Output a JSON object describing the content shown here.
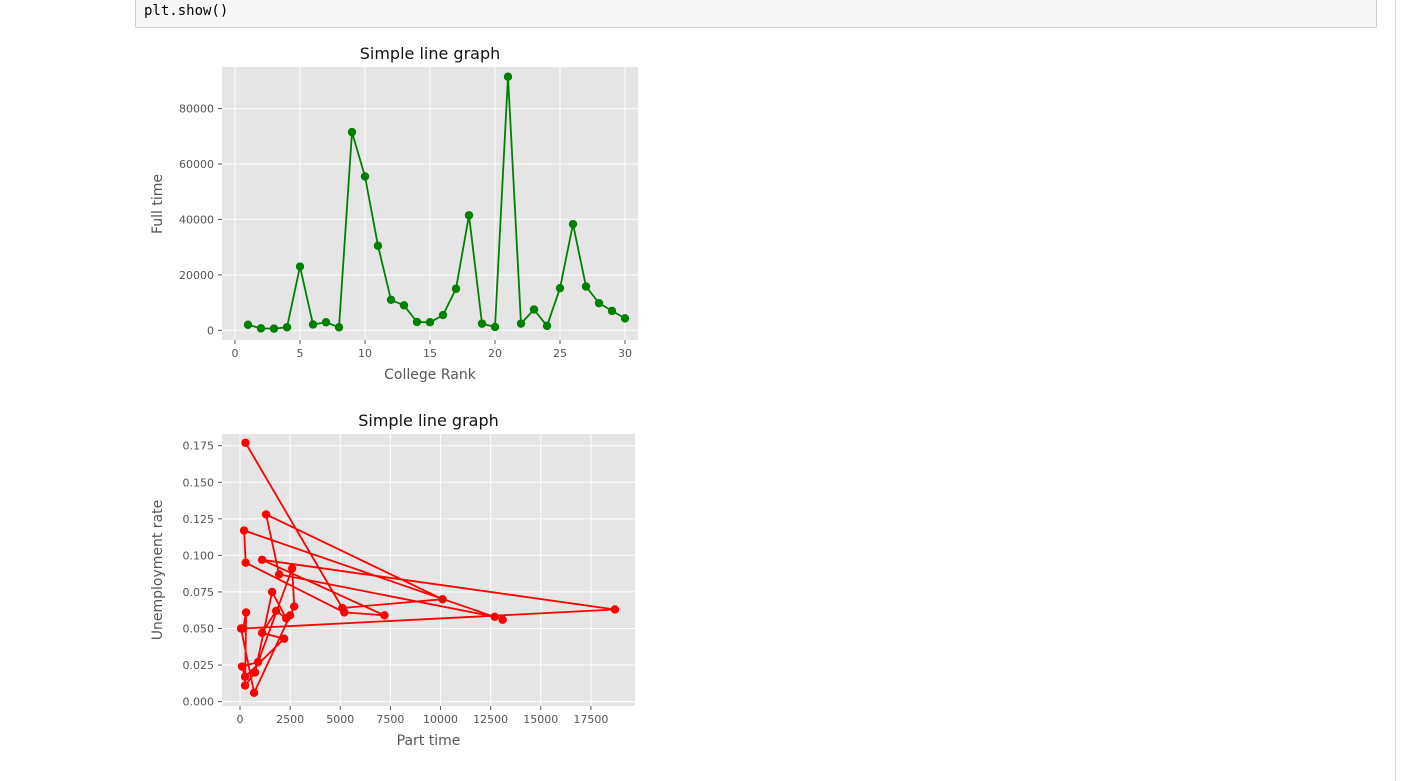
{
  "code": {
    "last_line": "plt.show()"
  },
  "chart_data": [
    {
      "type": "line",
      "title": "Simple line graph",
      "xlabel": "College Rank",
      "ylabel": "Full time",
      "marker": "circle",
      "color": "#008000",
      "background": "#e5e5e5",
      "grid": true,
      "xlim": [
        -1,
        31
      ],
      "ylim": [
        -3500,
        95000
      ],
      "xticks": [
        0,
        5,
        10,
        15,
        20,
        25,
        30
      ],
      "yticks": [
        0,
        20000,
        40000,
        60000,
        80000
      ],
      "xtick_labels": [
        "0",
        "5",
        "10",
        "15",
        "20",
        "25",
        "30"
      ],
      "ytick_labels": [
        "0",
        "20000",
        "40000",
        "60000",
        "80000"
      ],
      "x": [
        1,
        2,
        3,
        4,
        5,
        6,
        7,
        8,
        9,
        10,
        11,
        12,
        13,
        14,
        15,
        16,
        17,
        18,
        19,
        20,
        21,
        22,
        23,
        24,
        25,
        26,
        27,
        28,
        29,
        30
      ],
      "y": [
        2000,
        700,
        600,
        1100,
        23000,
        2100,
        2900,
        1100,
        71500,
        55500,
        30500,
        11000,
        9000,
        3000,
        2900,
        5500,
        15000,
        41500,
        2400,
        1200,
        91500,
        2400,
        7500,
        1600,
        15200,
        38300,
        15800,
        9800,
        7000,
        4300
      ]
    },
    {
      "type": "line",
      "title": "Simple line graph",
      "xlabel": "Part time",
      "ylabel": "Unemployment rate",
      "marker": "circle",
      "color": "#ff0000",
      "background": "#e5e5e5",
      "grid": true,
      "xlim": [
        -900,
        19700
      ],
      "ylim": [
        -0.003,
        0.183
      ],
      "xticks": [
        0,
        2500,
        5000,
        7500,
        10000,
        12500,
        15000,
        17500
      ],
      "yticks": [
        0,
        0.025,
        0.05,
        0.075,
        0.1,
        0.125,
        0.15,
        0.175
      ],
      "xtick_labels": [
        "0",
        "2500",
        "5000",
        "7500",
        "10000",
        "12500",
        "15000",
        "17500"
      ],
      "ytick_labels": [
        "0.000",
        "0.025",
        "0.050",
        "0.075",
        "0.100",
        "0.125",
        "0.150",
        "0.175"
      ],
      "x": [
        270,
        5100,
        10100,
        1300,
        1950,
        12700,
        13100,
        200,
        280,
        5200,
        7200,
        1100,
        18700,
        150,
        300,
        250,
        750,
        1600,
        2300,
        1800,
        1100,
        2200,
        250,
        100,
        900,
        2600,
        2700,
        2500,
        700,
        50
      ],
      "y": [
        0.177,
        0.064,
        0.07,
        0.128,
        0.087,
        0.058,
        0.056,
        0.117,
        0.095,
        0.061,
        0.059,
        0.097,
        0.063,
        0.05,
        0.061,
        0.011,
        0.02,
        0.075,
        0.057,
        0.062,
        0.047,
        0.043,
        0.017,
        0.024,
        0.027,
        0.091,
        0.065,
        0.059,
        0.006,
        0.05
      ]
    }
  ]
}
